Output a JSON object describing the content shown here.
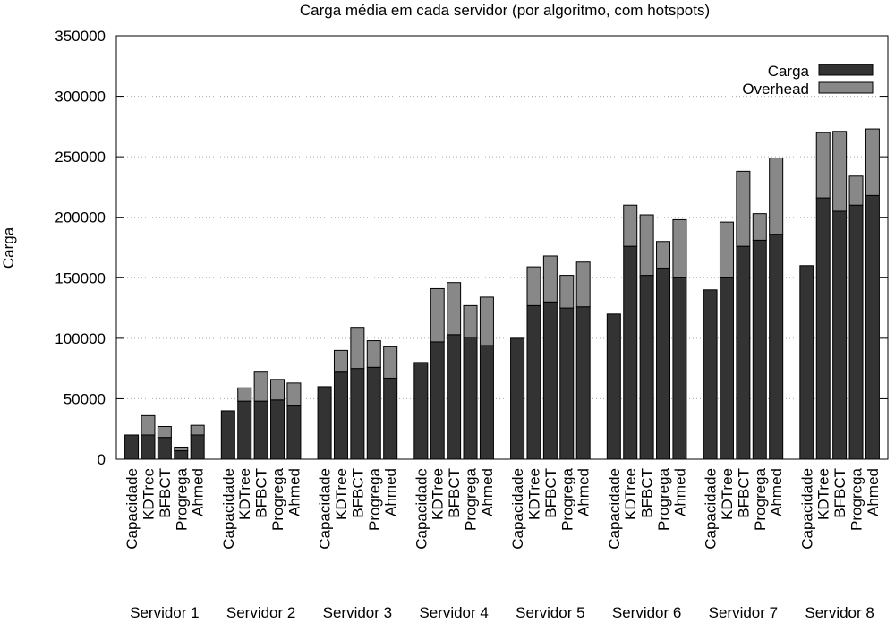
{
  "chart_data": {
    "type": "bar",
    "stacked": true,
    "title": "Carga média em cada servidor (por algoritmo, com hotspots)",
    "xlabel": "",
    "ylabel": "Carga",
    "ylim": [
      0,
      350000
    ],
    "yticks": [
      0,
      50000,
      100000,
      150000,
      200000,
      250000,
      300000,
      350000
    ],
    "grid": "horizontal dotted",
    "legend_position": "top-right",
    "colors": {
      "carga": "#333333",
      "overhead": "#888888"
    },
    "groups": [
      "Servidor 1",
      "Servidor 2",
      "Servidor 3",
      "Servidor 4",
      "Servidor 5",
      "Servidor 6",
      "Servidor 7",
      "Servidor 8"
    ],
    "bar_labels": [
      "Capacidade",
      "KDTree",
      "BFBCT",
      "Progrega",
      "Ahmed"
    ],
    "series": [
      {
        "name": "Carga",
        "values": [
          [
            20000,
            20000,
            18000,
            7000,
            20000
          ],
          [
            40000,
            48000,
            48000,
            49000,
            44000
          ],
          [
            60000,
            72000,
            75000,
            76000,
            67000
          ],
          [
            80000,
            97000,
            103000,
            101000,
            94000
          ],
          [
            100000,
            127000,
            130000,
            125000,
            126000
          ],
          [
            120000,
            176000,
            152000,
            158000,
            150000
          ],
          [
            140000,
            150000,
            176000,
            181000,
            186000
          ],
          [
            160000,
            216000,
            205000,
            210000,
            218000
          ]
        ]
      },
      {
        "name": "Overhead",
        "values": [
          [
            0,
            16000,
            9000,
            3000,
            8000
          ],
          [
            0,
            11000,
            24000,
            17000,
            19000
          ],
          [
            0,
            18000,
            34000,
            22000,
            26000
          ],
          [
            0,
            44000,
            43000,
            26000,
            40000
          ],
          [
            0,
            32000,
            38000,
            27000,
            37000
          ],
          [
            0,
            34000,
            50000,
            22000,
            48000
          ],
          [
            0,
            46000,
            62000,
            22000,
            63000
          ],
          [
            0,
            54000,
            66000,
            24000,
            55000
          ]
        ]
      }
    ]
  }
}
